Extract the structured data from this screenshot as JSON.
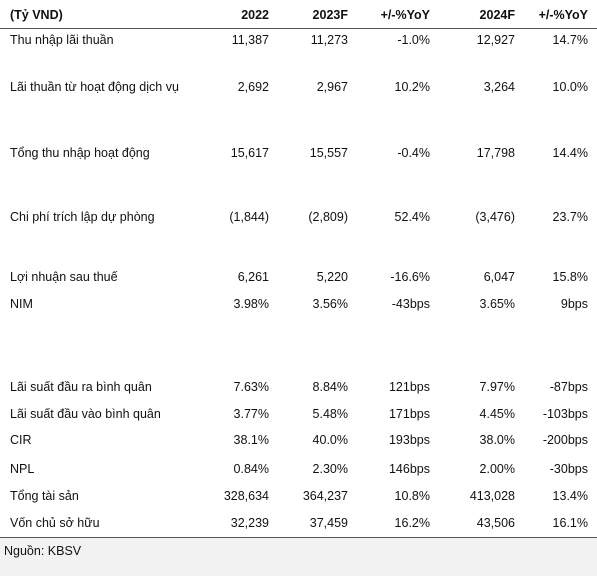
{
  "table": {
    "header": [
      "(Tỷ VND)",
      "2022",
      "2023F",
      "+/-%YoY",
      "2024F",
      "+/-%YoY"
    ],
    "rows": [
      [
        "Thu nhập lãi thuần",
        "11,387",
        "11,273",
        "-1.0%",
        "12,927",
        "14.7%"
      ],
      [
        "Lãi thuần từ hoạt động dịch vụ",
        "2,692",
        "2,967",
        "10.2%",
        "3,264",
        "10.0%"
      ],
      [
        "Tổng thu nhập hoạt động",
        "15,617",
        "15,557",
        "-0.4%",
        "17,798",
        "14.4%"
      ],
      [
        "Chi phí trích lập dự phòng",
        "(1,844)",
        "(2,809)",
        "52.4%",
        "(3,476)",
        "23.7%"
      ],
      [
        "Lợi nhuận sau thuế",
        "6,261",
        "5,220",
        "-16.6%",
        "6,047",
        "15.8%"
      ],
      [
        "NIM",
        "3.98%",
        "3.56%",
        "-43bps",
        "3.65%",
        "9bps"
      ],
      [
        "Lãi suất đầu ra bình quân",
        "7.63%",
        "8.84%",
        "121bps",
        "7.97%",
        "-87bps"
      ],
      [
        "Lãi suất đầu vào bình quân",
        "3.77%",
        "5.48%",
        "171bps",
        "4.45%",
        "-103bps"
      ],
      [
        "CIR",
        "38.1%",
        "40.0%",
        "193bps",
        "38.0%",
        "-200bps"
      ],
      [
        "NPL",
        "0.84%",
        "2.30%",
        "146bps",
        "2.00%",
        "-30bps"
      ],
      [
        "Tổng tài sản",
        "328,634",
        "364,237",
        "10.8%",
        "413,028",
        "13.4%"
      ],
      [
        "Vốn chủ sở hữu",
        "32,239",
        "37,459",
        "16.2%",
        "43,506",
        "16.1%"
      ]
    ]
  },
  "source": "Nguồn: KBSV"
}
